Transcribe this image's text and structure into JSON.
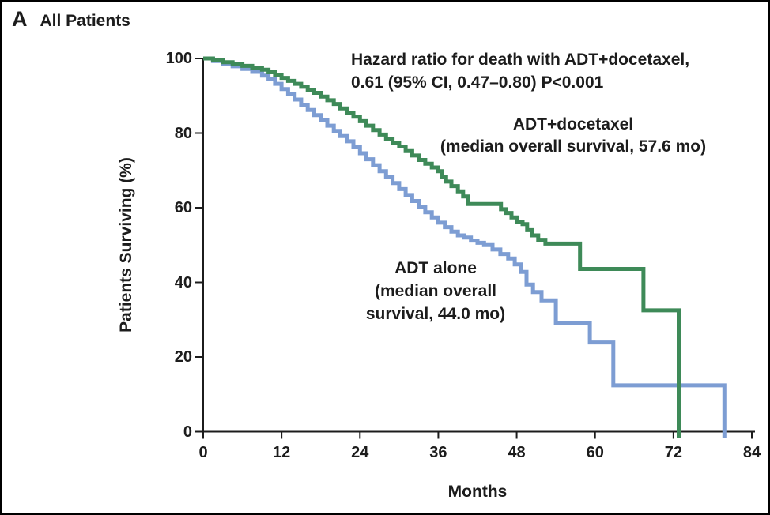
{
  "panel": {
    "letter": "A",
    "title": "All Patients"
  },
  "axes": {
    "x_label": "Months",
    "y_label": "Patients Surviving (%)"
  },
  "annotation": {
    "line1": "Hazard ratio for death with ADT+docetaxel,",
    "line2": "0.61 (95% CI, 0.47–0.80) P<0.001"
  },
  "curve_labels": {
    "docetaxel_line1": "ADT+docetaxel",
    "docetaxel_line2": "(median overall survival, 57.6 mo)",
    "alone_line1": "ADT alone",
    "alone_line2": "(median overall",
    "alone_line3": "survival, 44.0 mo)"
  },
  "colors": {
    "axis": "#1c1c1c",
    "docetaxel_green": "#3e8a58",
    "alone_blue": "#7d9dd3"
  },
  "chart_data": {
    "type": "line",
    "subtype": "kaplan-meier-step",
    "title": "All Patients",
    "xlabel": "Months",
    "ylabel": "Patients Surviving (%)",
    "xlim": [
      0,
      84
    ],
    "ylim": [
      0,
      100
    ],
    "x_ticks": [
      0,
      12,
      24,
      36,
      48,
      60,
      72,
      84
    ],
    "y_ticks": [
      0,
      20,
      40,
      60,
      80,
      100
    ],
    "grid": false,
    "legend_position": "inline-labels",
    "annotations": {
      "hazard_ratio": 0.61,
      "ci_95": "0.47–0.80",
      "p_value": "P<0.001"
    },
    "series": [
      {
        "name": "ADT alone",
        "median_overall_survival_mo": 44.0,
        "color": "#7d9dd3",
        "points": [
          [
            0,
            100
          ],
          [
            1.5,
            99.3
          ],
          [
            3,
            98.6
          ],
          [
            4.5,
            97.9
          ],
          [
            6,
            97.2
          ],
          [
            7.5,
            96.4
          ],
          [
            9,
            95.4
          ],
          [
            10,
            94.4
          ],
          [
            11,
            93.2
          ],
          [
            12,
            91.8
          ],
          [
            13,
            90.4
          ],
          [
            14,
            89
          ],
          [
            15,
            87.6
          ],
          [
            16,
            86.2
          ],
          [
            17,
            84.8
          ],
          [
            18,
            83.4
          ],
          [
            19,
            82
          ],
          [
            20,
            80.6
          ],
          [
            21,
            79.2
          ],
          [
            22,
            77.8
          ],
          [
            23,
            76.2
          ],
          [
            24,
            74.6
          ],
          [
            25,
            73
          ],
          [
            26,
            71.4
          ],
          [
            27,
            69.8
          ],
          [
            28,
            68.2
          ],
          [
            29,
            66.6
          ],
          [
            30,
            65
          ],
          [
            31,
            63.4
          ],
          [
            32,
            61.8
          ],
          [
            33,
            60.2
          ],
          [
            34,
            58.8
          ],
          [
            35,
            57.4
          ],
          [
            36,
            56
          ],
          [
            37,
            54.8
          ],
          [
            38,
            53.6
          ],
          [
            39,
            52.6
          ],
          [
            40,
            52
          ],
          [
            41,
            51.2
          ],
          [
            42,
            50.6
          ],
          [
            43,
            50
          ],
          [
            44.3,
            48.8
          ],
          [
            45.5,
            47.6
          ],
          [
            46.7,
            46.4
          ],
          [
            47.7,
            44.8
          ],
          [
            48.6,
            42.8
          ],
          [
            49.5,
            39.4
          ],
          [
            50.5,
            37.4
          ],
          [
            51.8,
            35.2
          ],
          [
            54,
            29.2
          ],
          [
            59.2,
            23.9
          ],
          [
            62.8,
            12.4
          ],
          [
            79.8,
            0
          ]
        ]
      },
      {
        "name": "ADT+docetaxel",
        "median_overall_survival_mo": 57.6,
        "color": "#3e8a58",
        "points": [
          [
            0,
            100
          ],
          [
            1.5,
            99.5
          ],
          [
            3,
            99
          ],
          [
            4.5,
            98.5
          ],
          [
            6,
            98
          ],
          [
            7.5,
            97.5
          ],
          [
            9,
            97
          ],
          [
            10,
            96.3
          ],
          [
            11,
            95.6
          ],
          [
            12,
            94.8
          ],
          [
            13,
            94
          ],
          [
            14,
            93.2
          ],
          [
            15,
            92.4
          ],
          [
            16,
            91.6
          ],
          [
            17,
            90.8
          ],
          [
            18,
            89.8
          ],
          [
            19,
            88.8
          ],
          [
            20,
            87.8
          ],
          [
            21,
            86.6
          ],
          [
            22,
            85.4
          ],
          [
            23,
            84.4
          ],
          [
            24,
            83.2
          ],
          [
            25,
            82
          ],
          [
            26,
            80.8
          ],
          [
            27,
            79.6
          ],
          [
            28,
            78.4
          ],
          [
            29,
            77.4
          ],
          [
            30,
            76.4
          ],
          [
            31,
            75.2
          ],
          [
            32,
            74
          ],
          [
            33,
            72.8
          ],
          [
            34,
            71.8
          ],
          [
            35,
            70.8
          ],
          [
            36,
            69.8
          ],
          [
            36.6,
            68.2
          ],
          [
            37.2,
            67
          ],
          [
            38,
            65.8
          ],
          [
            39,
            64.4
          ],
          [
            39.8,
            63
          ],
          [
            40.5,
            61
          ],
          [
            45.6,
            59.6
          ],
          [
            46.4,
            58.6
          ],
          [
            47.2,
            57.4
          ],
          [
            48,
            56.2
          ],
          [
            48.9,
            55.6
          ],
          [
            49.6,
            54
          ],
          [
            50.4,
            52.6
          ],
          [
            51.3,
            51.4
          ],
          [
            52.4,
            50.4
          ],
          [
            57.7,
            43.6
          ],
          [
            67.4,
            32.5
          ],
          [
            72.8,
            0
          ]
        ]
      }
    ]
  }
}
